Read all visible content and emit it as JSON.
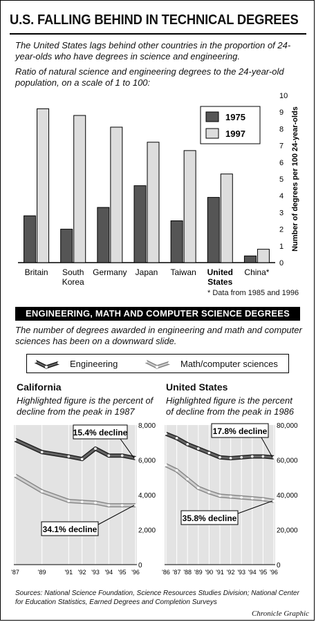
{
  "header": {
    "title": "U.S. FALLING BEHIND IN TECHNICAL DEGREES",
    "intro": "The United States lags behind other countries in the proportion of 24-year-olds who have degrees in science and engineering.",
    "subtitle": "Ratio of natural science and engineering degrees to the 24-year-old population, on a scale of 1 to 100:"
  },
  "footnote": "* Data from 1985 and 1996",
  "section2": {
    "band": "ENGINEERING, MATH AND COMPUTER SCIENCE DEGREES",
    "intro": "The number of degrees awarded in engineering and math and computer sciences has been on a downward slide.",
    "legend": {
      "engineering": "Engineering",
      "math": "Math/computer sciences"
    },
    "california": {
      "title": "California",
      "sub": "Highlighted figure is the percent of decline from the peak in 1987"
    },
    "us": {
      "title": "United States",
      "sub": "Highlighted figure is the percent of decline from the peak in 1986"
    }
  },
  "sources": "Sources: National Science Foundation, Science Resources Studies Division; National Center for Education Statistics, Earned Degrees and Completion Surveys",
  "credit": "Chronicle Graphic",
  "colors": {
    "dark": "#555555",
    "light": "#dddddd",
    "panel_bg": "#e3e3e3"
  },
  "chart_data": [
    {
      "type": "bar",
      "categories": [
        "Britain",
        "South Korea",
        "Germany",
        "Japan",
        "Taiwan",
        "United States",
        "China*"
      ],
      "category_lines": [
        [
          "Britain"
        ],
        [
          "South",
          "Korea"
        ],
        [
          "Germany"
        ],
        [
          "Japan"
        ],
        [
          "Taiwan"
        ],
        [
          "United",
          "States"
        ],
        [
          "China*"
        ]
      ],
      "series": [
        {
          "name": "1975",
          "values": [
            2.8,
            2.0,
            3.3,
            4.6,
            2.5,
            3.9,
            0.4
          ]
        },
        {
          "name": "1997",
          "values": [
            9.2,
            8.8,
            8.1,
            7.2,
            6.7,
            5.3,
            0.8
          ]
        }
      ],
      "ylabel": "Number of degrees per 100 24-year-olds",
      "ylim": [
        0,
        10
      ],
      "yticks": [
        0,
        1,
        2,
        3,
        4,
        5,
        6,
        7,
        8,
        9,
        10
      ],
      "legend_position": "top-right",
      "grid": false
    },
    {
      "type": "line",
      "title": "California",
      "x": [
        "'87",
        "'89",
        "'91",
        "'92",
        "'93",
        "'94",
        "'95",
        "'96"
      ],
      "x_numeric": [
        1987,
        1989,
        1991,
        1992,
        1993,
        1994,
        1995,
        1996
      ],
      "series": [
        {
          "name": "Engineering",
          "values": [
            7150,
            6450,
            6200,
            6050,
            6650,
            6250,
            6250,
            6100
          ]
        },
        {
          "name": "Math/computer sciences",
          "values": [
            5100,
            4200,
            3650,
            3600,
            3550,
            3400,
            3400,
            3400
          ]
        }
      ],
      "ylim": [
        0,
        8000
      ],
      "yticks": [
        "0",
        "2,000",
        "4,000",
        "6,000",
        "8,000"
      ],
      "yticks_values": [
        0,
        2000,
        4000,
        6000,
        8000
      ],
      "annotations": [
        "15.4% decline",
        "34.1% decline"
      ]
    },
    {
      "type": "line",
      "title": "United States",
      "x": [
        "'86",
        "'87",
        "'88",
        "'89",
        "'90",
        "'91",
        "'92",
        "'93",
        "'94",
        "'95",
        "'96"
      ],
      "x_numeric": [
        1986,
        1987,
        1988,
        1989,
        1990,
        1991,
        1992,
        1993,
        1994,
        1995,
        1996
      ],
      "series": [
        {
          "name": "Engineering",
          "values": [
            75000,
            72500,
            69000,
            66500,
            64000,
            61500,
            61000,
            61500,
            62000,
            62000,
            61500
          ]
        },
        {
          "name": "Math/computer sciences",
          "values": [
            57000,
            54000,
            49000,
            44000,
            41500,
            39500,
            39000,
            38500,
            38000,
            37500,
            36500
          ]
        }
      ],
      "ylim": [
        0,
        80000
      ],
      "yticks": [
        "0",
        "20,000",
        "40,000",
        "60,000",
        "80,000"
      ],
      "yticks_values": [
        0,
        20000,
        40000,
        60000,
        80000
      ],
      "annotations": [
        "17.8% decline",
        "35.8% decline"
      ]
    }
  ]
}
